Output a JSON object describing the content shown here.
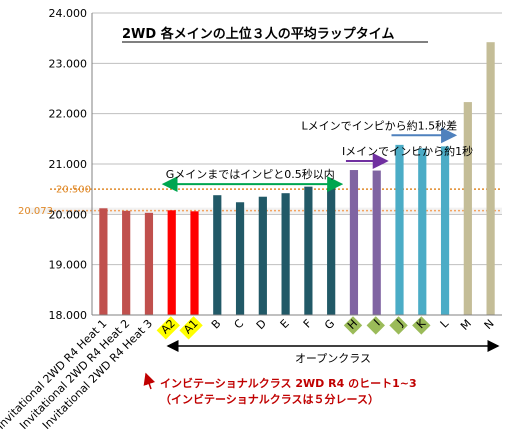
{
  "chart_data": {
    "type": "bar",
    "title": "2WD 各メインの上位３人の平均ラップタイム",
    "ylim": [
      18.0,
      24.0
    ],
    "yticks": [
      "18.000",
      "19.000",
      "20.000",
      "21.000",
      "22.000",
      "23.000",
      "24.000"
    ],
    "grid": true,
    "categories": [
      "Invitational 2WD R4 Heat 1",
      "Invitational 2WD R4 Heat 2",
      "Invitational 2WD R4 Heat 3",
      "A2",
      "A1",
      "B",
      "C",
      "D",
      "E",
      "F",
      "G",
      "H",
      "I",
      "J",
      "K",
      "L",
      "M",
      "N"
    ],
    "values": [
      20.12,
      20.07,
      20.03,
      20.08,
      20.06,
      20.38,
      20.24,
      20.35,
      20.42,
      20.55,
      20.52,
      20.88,
      20.87,
      21.38,
      21.31,
      21.35,
      22.23,
      23.42
    ],
    "colors": [
      "#c0504d",
      "#c0504d",
      "#c0504d",
      "#ff0000",
      "#ff0000",
      "#215967",
      "#215967",
      "#215967",
      "#215967",
      "#215967",
      "#215967",
      "#8064a2",
      "#8064a2",
      "#4bacc6",
      "#4bacc6",
      "#4bacc6",
      "#c4bd97",
      "#c4bd97"
    ],
    "highlight_labels": {
      "A2": "#ffff00",
      "A1": "#ffff00",
      "H": "#9bbb59",
      "I": "#9bbb59",
      "J": "#9bbb59",
      "K": "#9bbb59"
    },
    "reference_lines": [
      {
        "value": 20.073,
        "label": "20.073",
        "color": "#f4a460"
      },
      {
        "value": 20.5,
        "label": "20.500",
        "color": "#e08a2a"
      }
    ],
    "annotations": [
      {
        "text": "Gメインまではインピと0.5秒以内",
        "from": "A2",
        "to": "G",
        "y": 20.6,
        "color": "#00a650"
      },
      {
        "text": "Iメインでインピから約1秒",
        "from": "H",
        "to": "I",
        "y": 21.06,
        "color": "#7030a0"
      },
      {
        "text": "Lメインでインピから約1.5秒差",
        "from": "J",
        "to": "L",
        "y": 21.57,
        "color": "#4f81bd"
      }
    ],
    "class_label": "オープンクラス",
    "note_lines": [
      "インビテーショナルクラス 2WD R4 のヒート1~3",
      "（インビテーショナルクラスは５分レース）"
    ]
  }
}
